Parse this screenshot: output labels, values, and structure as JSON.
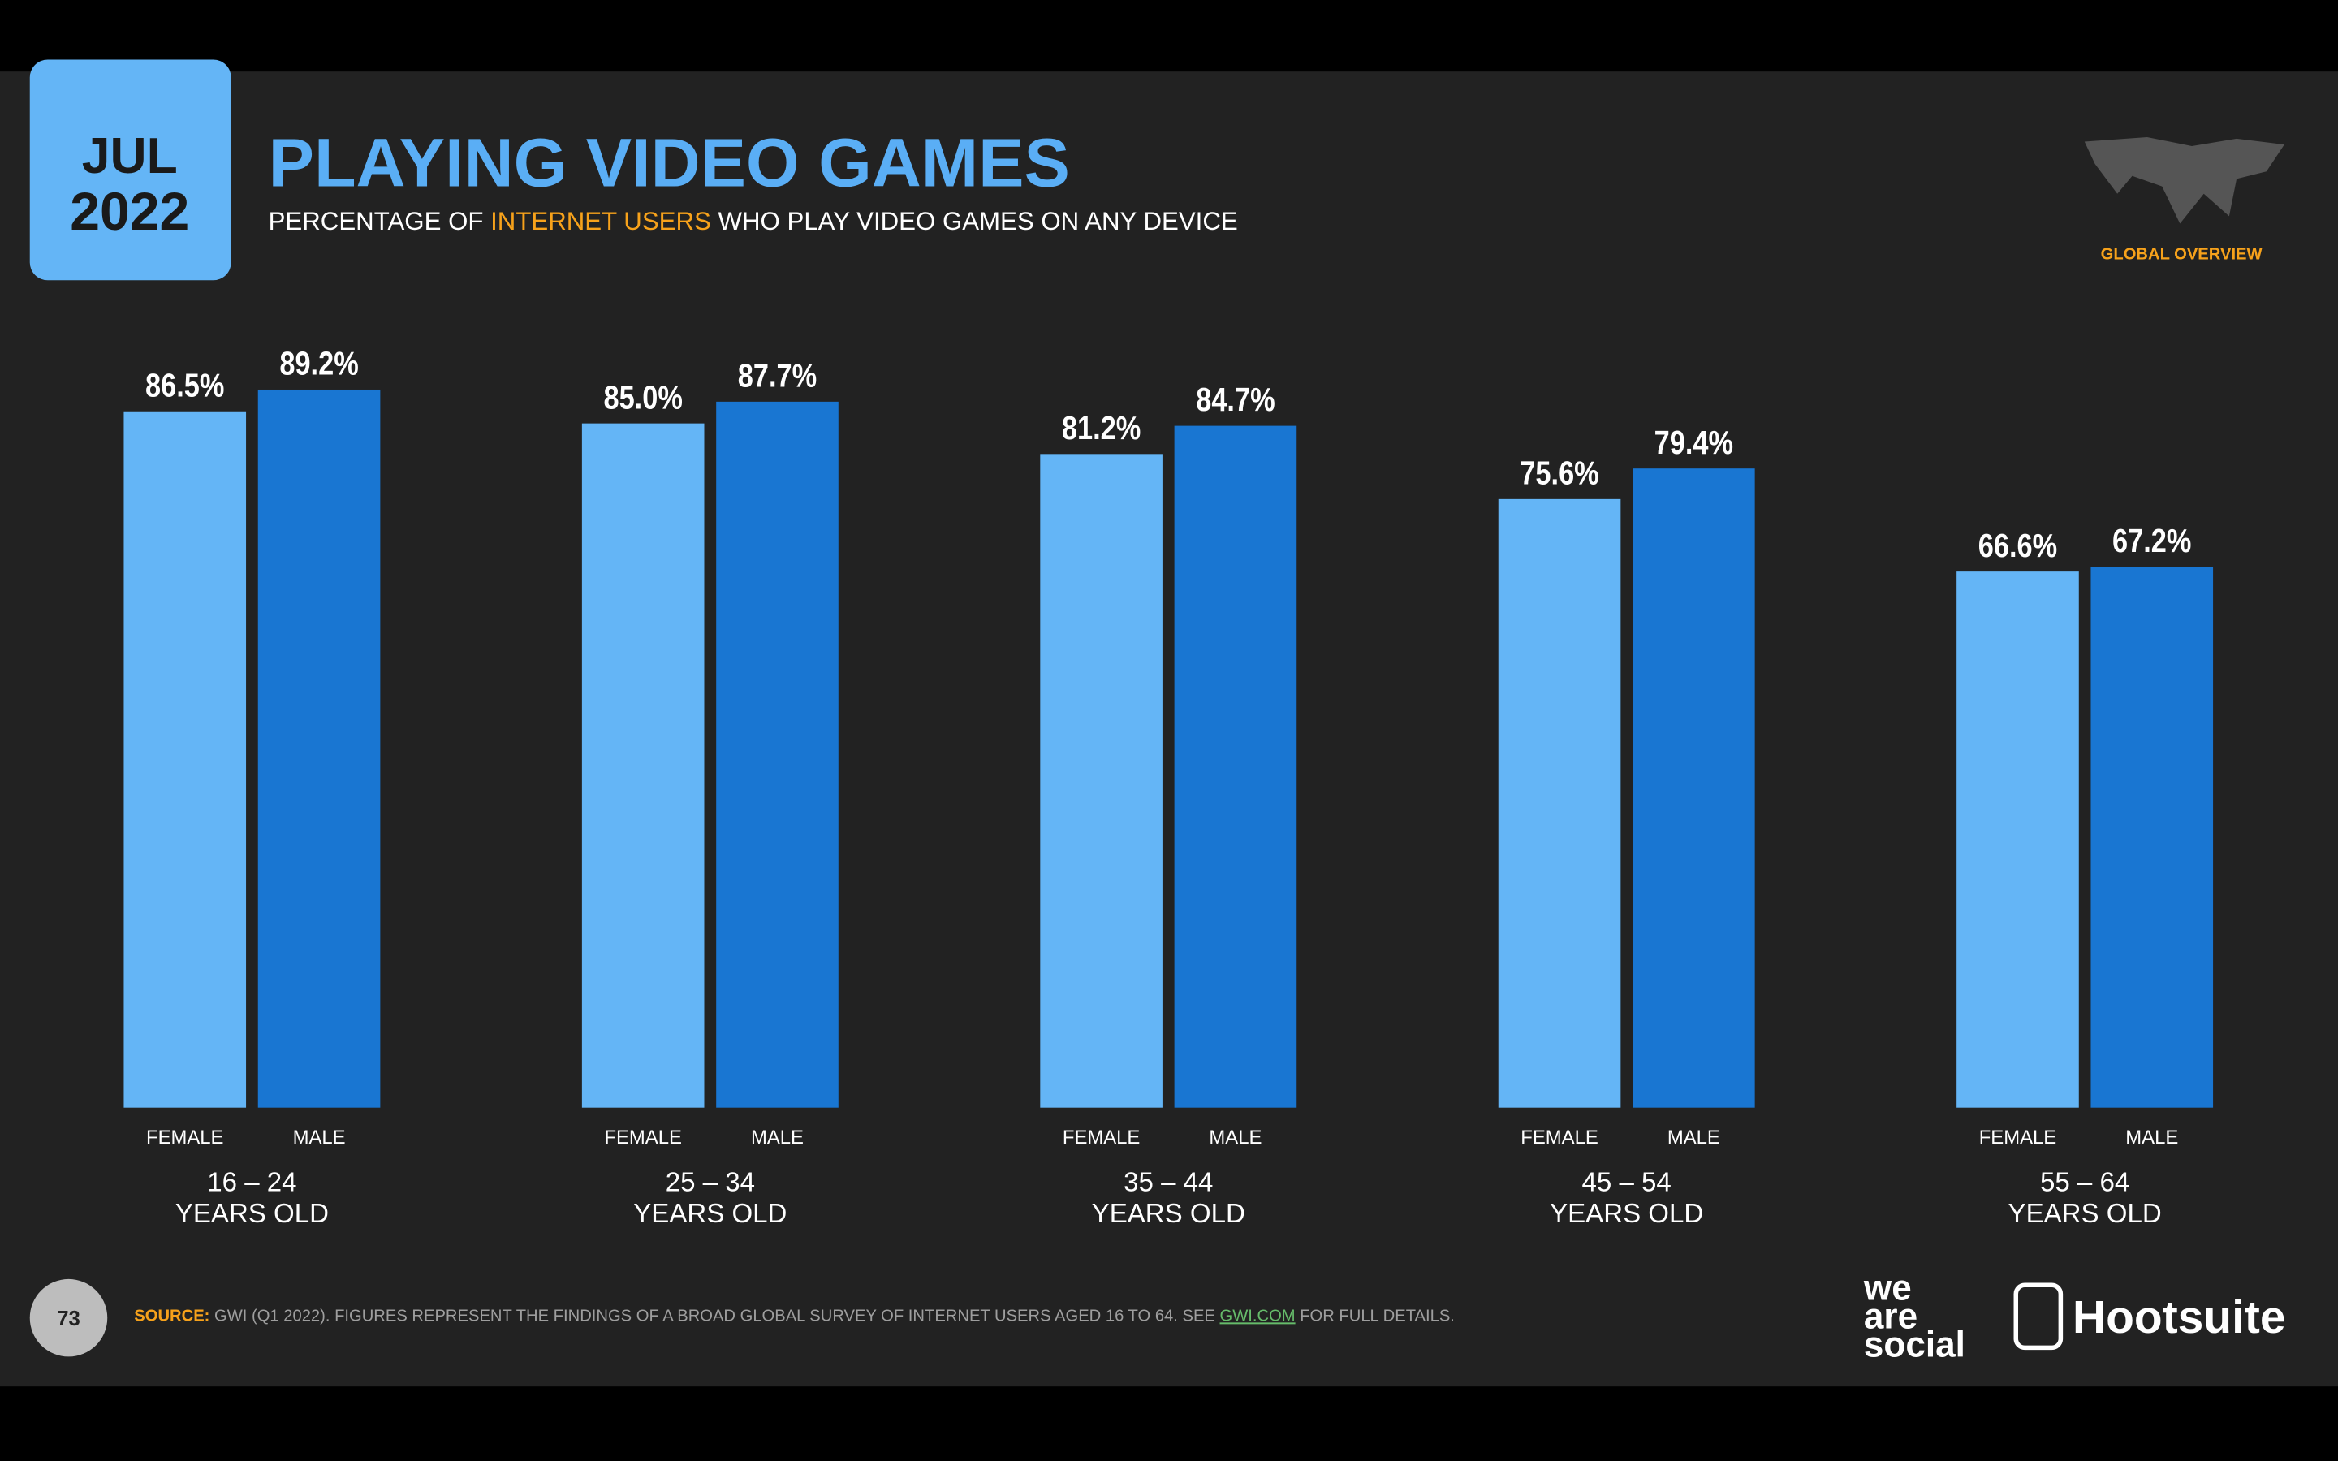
{
  "chart_data": {
    "type": "bar",
    "date_month": "JUL",
    "date_year": "2022",
    "title": "PLAYING VIDEO GAMES",
    "subtitle": [
      "PERCENTAGE OF ",
      "INTERNET USERS",
      " WHO PLAY VIDEO GAMES ON ANY DEVICE"
    ],
    "badge": "GLOBAL OVERVIEW",
    "categories": [
      "16 – 24",
      "25 – 34",
      "35 – 44",
      "45 – 54",
      "55 – 64"
    ],
    "category_suffix": "YEARS OLD",
    "ylim": [
      0,
      100
    ],
    "series": [
      {
        "name": "FEMALE",
        "color": "#64b5f6",
        "values": [
          86.5,
          85.0,
          81.2,
          75.6,
          66.6
        ],
        "value_labels": [
          "86.5%",
          "85.0%",
          "81.2%",
          "75.6%",
          "66.6%"
        ]
      },
      {
        "name": "MALE",
        "color": "#1976d2",
        "values": [
          89.2,
          87.7,
          84.7,
          79.4,
          67.2
        ],
        "value_labels": [
          "89.2%",
          "87.7%",
          "84.7%",
          "79.4%",
          "67.2%"
        ]
      }
    ],
    "page_number": "73",
    "source": {
      "label": "SOURCE:",
      "text": " GWI (Q1 2022). FIGURES REPRESENT THE FINDINGS OF A BROAD GLOBAL SURVEY OF INTERNET USERS AGED 16 TO 64. SEE ",
      "link": "GWI.COM",
      "tail": " FOR FULL DETAILS."
    },
    "logos": {
      "we_are_social": [
        "we",
        "are",
        "social"
      ],
      "hootsuite": "Hootsuite"
    }
  }
}
